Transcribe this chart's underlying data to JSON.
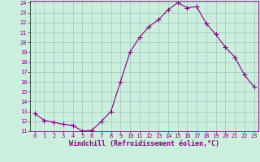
{
  "x": [
    0,
    1,
    2,
    3,
    4,
    5,
    6,
    7,
    8,
    9,
    10,
    11,
    12,
    13,
    14,
    15,
    16,
    17,
    18,
    19,
    20,
    21,
    22,
    23
  ],
  "y": [
    12.8,
    12.1,
    11.9,
    11.7,
    11.6,
    11.0,
    11.1,
    12.0,
    13.0,
    16.0,
    19.0,
    20.5,
    21.6,
    22.3,
    23.3,
    24.0,
    23.5,
    23.6,
    21.9,
    20.8,
    19.5,
    18.5,
    16.7,
    15.5
  ],
  "line_color": "#880088",
  "marker": "+",
  "marker_size": 4,
  "bg_color": "#cceedd",
  "grid_color": "#99bbbb",
  "xlabel": "Windchill (Refroidissement éolien,°C)",
  "xlim": [
    -0.5,
    23.5
  ],
  "ylim": [
    11,
    24.2
  ],
  "yticks": [
    11,
    12,
    13,
    14,
    15,
    16,
    17,
    18,
    19,
    20,
    21,
    22,
    23,
    24
  ],
  "xticks": [
    0,
    1,
    2,
    3,
    4,
    5,
    6,
    7,
    8,
    9,
    10,
    11,
    12,
    13,
    14,
    15,
    16,
    17,
    18,
    19,
    20,
    21,
    22,
    23
  ],
  "tick_fontsize": 5.0,
  "xlabel_fontsize": 6.0,
  "line_width": 0.8,
  "marker_linewidth": 0.8
}
